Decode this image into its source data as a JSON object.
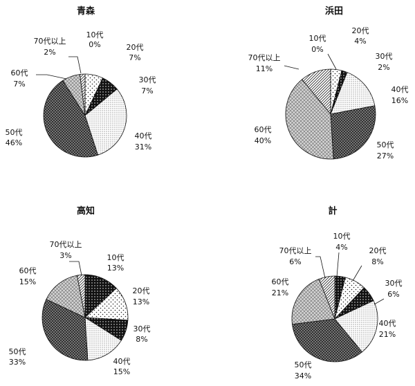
{
  "chart_data": [
    {
      "type": "pie",
      "title": "青森",
      "categories": [
        "10代",
        "20代",
        "30代",
        "40代",
        "50代",
        "60代",
        "70代以上"
      ],
      "values": [
        0,
        7,
        7,
        31,
        46,
        7,
        2
      ],
      "labels": [
        "0%",
        "7%",
        "7%",
        "31%",
        "46%",
        "7%",
        "2%"
      ]
    },
    {
      "type": "pie",
      "title": "浜田",
      "categories": [
        "10代",
        "20代",
        "30代",
        "40代",
        "50代",
        "60代",
        "70代以上"
      ],
      "values": [
        0,
        4,
        2,
        16,
        27,
        40,
        11
      ],
      "labels": [
        "0%",
        "4%",
        "2%",
        "16%",
        "27%",
        "40%",
        "11%"
      ]
    },
    {
      "type": "pie",
      "title": "高知",
      "categories": [
        "10代",
        "20代",
        "30代",
        "40代",
        "50代",
        "60代",
        "70代以上"
      ],
      "values": [
        13,
        13,
        8,
        15,
        33,
        15,
        3
      ],
      "labels": [
        "13%",
        "13%",
        "8%",
        "15%",
        "33%",
        "15%",
        "3%"
      ]
    },
    {
      "type": "pie",
      "title": "計",
      "categories": [
        "10代",
        "20代",
        "30代",
        "40代",
        "50代",
        "60代",
        "70代以上"
      ],
      "values": [
        4,
        8,
        6,
        21,
        34,
        21,
        6
      ],
      "labels": [
        "4%",
        "8%",
        "6%",
        "21%",
        "34%",
        "21%",
        "6%"
      ]
    }
  ]
}
